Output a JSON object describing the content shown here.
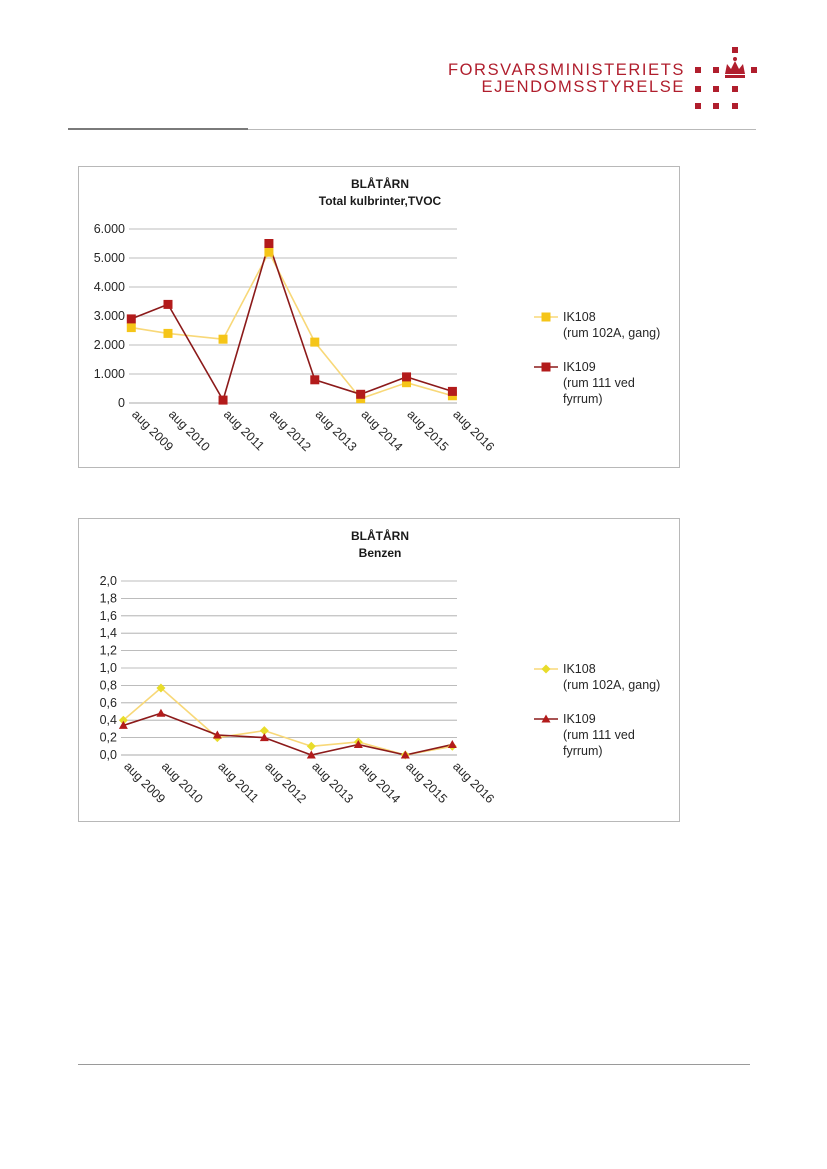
{
  "header": {
    "org_line1": "FORSVARSMINISTERIETS",
    "org_line2": "EJENDOMSSTYRELSE",
    "logo_icon": "crown-dots-logo",
    "brand_color": "#b01e2d"
  },
  "chart_data": [
    {
      "type": "line",
      "title": "BLÅTÅRN",
      "subtitle": "Total kulbrinter,TVOC",
      "categories": [
        "aug 2009",
        "aug 2010",
        "aug 2011",
        "aug 2012",
        "aug 2013",
        "aug 2014",
        "aug 2015",
        "aug 2016"
      ],
      "x": [
        2009.6,
        2010.4,
        2011.6,
        2012.6,
        2013.6,
        2014.6,
        2015.6,
        2016.6
      ],
      "yticks": [
        "0",
        "1.000",
        "2.000",
        "3.000",
        "4.000",
        "5.000",
        "6.000"
      ],
      "ylim": [
        0,
        6000
      ],
      "grid": true,
      "legend_position": "right",
      "series": [
        {
          "name": "IK108",
          "legend_lines": [
            "IK108",
            "(rum 102A, gang)"
          ],
          "color": "#f5c518",
          "line_color": "#f8d878",
          "marker": "square",
          "x": [
            2009.6,
            2010.4,
            2011.6,
            2012.6,
            2013.6,
            2014.6,
            2015.6,
            2016.6
          ],
          "values": [
            2600,
            2400,
            2200,
            5200,
            2100,
            150,
            700,
            250
          ]
        },
        {
          "name": "IK109",
          "legend_lines": [
            "IK109",
            "(rum 111 ved",
            "fyrrum)"
          ],
          "color": "#b31b1b",
          "line_color": "#8c1a1a",
          "marker": "square",
          "x": [
            2009.6,
            2010.4,
            2011.6,
            2012.6,
            2013.6,
            2014.6,
            2015.6,
            2016.6
          ],
          "values": [
            2900,
            3400,
            100,
            5500,
            800,
            300,
            900,
            400
          ]
        }
      ]
    },
    {
      "type": "line",
      "title": "BLÅTÅRN",
      "subtitle": "Benzen",
      "categories": [
        "aug 2009",
        "aug 2010",
        "aug 2011",
        "aug 2012",
        "aug 2013",
        "aug 2014",
        "aug 2015",
        "aug 2016"
      ],
      "x": [
        2009.6,
        2010.4,
        2011.6,
        2012.6,
        2013.6,
        2014.6,
        2015.6,
        2016.6
      ],
      "yticks": [
        "0,0",
        "0,2",
        "0,4",
        "0,6",
        "0,8",
        "1,0",
        "1,2",
        "1,4",
        "1,6",
        "1,8",
        "2,0"
      ],
      "ylim": [
        0,
        2
      ],
      "grid": true,
      "legend_position": "right",
      "series": [
        {
          "name": "IK108",
          "legend_lines": [
            "IK108",
            "(rum 102A, gang)"
          ],
          "color": "#e8dc2a",
          "line_color": "#f8d878",
          "marker": "diamond",
          "x": [
            2009.6,
            2010.4,
            2011.6,
            2012.6,
            2013.6,
            2014.6,
            2015.6,
            2016.6
          ],
          "values": [
            0.4,
            0.77,
            0.2,
            0.28,
            0.1,
            0.15,
            0.0,
            0.1
          ]
        },
        {
          "name": "IK109",
          "legend_lines": [
            "IK109",
            "(rum 111 ved",
            "fyrrum)"
          ],
          "color": "#b31b1b",
          "line_color": "#8c1a1a",
          "marker": "triangle",
          "x": [
            2009.6,
            2010.4,
            2011.6,
            2012.6,
            2013.6,
            2014.6,
            2015.6,
            2016.6
          ],
          "values": [
            0.34,
            0.48,
            0.23,
            0.2,
            0.0,
            0.12,
            0.0,
            0.12
          ]
        }
      ]
    }
  ]
}
